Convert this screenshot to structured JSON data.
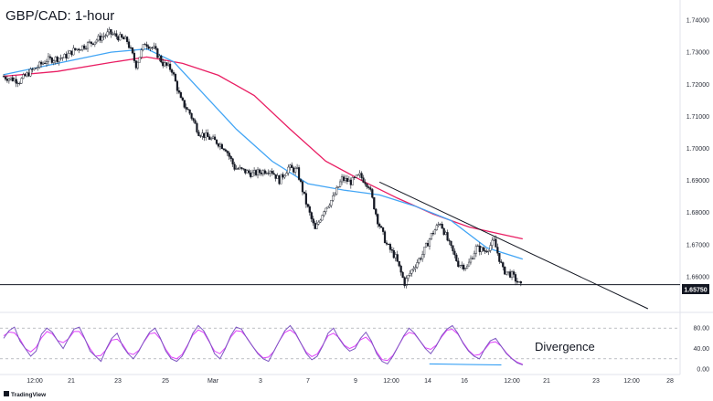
{
  "chart_data": {
    "type": "candlestick",
    "title": "GBP/CAD: 1-hour",
    "price_axis": {
      "ticks": [
        "1.74000",
        "1.73000",
        "1.72000",
        "1.71000",
        "1.70000",
        "1.69000",
        "1.68000",
        "1.67000",
        "1.66000"
      ],
      "range": [
        1.65,
        1.744
      ]
    },
    "support_level": {
      "price": 1.6575,
      "label": "1.65750"
    },
    "x_ticks": [
      "12:00",
      "21",
      "23",
      "25",
      "Mar",
      "3",
      "7",
      "9",
      "12:00",
      "14",
      "16",
      "12:00",
      "21",
      "23",
      "12:00",
      "28"
    ],
    "price_path": [
      [
        0,
        1.7225
      ],
      [
        2,
        1.721
      ],
      [
        3,
        1.7235
      ],
      [
        5,
        1.7275
      ],
      [
        7,
        1.7285
      ],
      [
        8,
        1.7305
      ],
      [
        10,
        1.733
      ],
      [
        12,
        1.736
      ],
      [
        14,
        1.7335
      ],
      [
        15,
        1.726
      ],
      [
        16,
        1.733
      ],
      [
        17,
        1.731
      ],
      [
        18,
        1.7265
      ],
      [
        19,
        1.7245
      ],
      [
        20,
        1.715
      ],
      [
        21,
        1.711
      ],
      [
        22,
        1.705
      ],
      [
        24,
        1.702
      ],
      [
        25,
        1.7
      ],
      [
        26,
        1.694
      ],
      [
        28,
        1.692
      ],
      [
        30,
        1.6935
      ],
      [
        31,
        1.69
      ],
      [
        32,
        1.694
      ],
      [
        33,
        1.693
      ],
      [
        34,
        1.683
      ],
      [
        35,
        1.6745
      ],
      [
        36,
        1.681
      ],
      [
        37,
        1.6845
      ],
      [
        38,
        1.6905
      ],
      [
        39,
        1.6895
      ],
      [
        40,
        1.6915
      ],
      [
        41,
        1.6885
      ],
      [
        42,
        1.6775
      ],
      [
        43,
        1.67
      ],
      [
        44,
        1.666
      ],
      [
        45,
        1.658
      ],
      [
        46,
        1.663
      ],
      [
        47,
        1.667
      ],
      [
        48,
        1.673
      ],
      [
        49,
        1.677
      ],
      [
        50,
        1.67
      ],
      [
        51,
        1.664
      ],
      [
        52,
        1.663
      ],
      [
        53,
        1.669
      ],
      [
        54,
        1.668
      ],
      [
        55,
        1.671
      ],
      [
        56,
        1.662
      ],
      [
        57,
        1.6605
      ],
      [
        58,
        1.657
      ]
    ],
    "moving_averages": [
      {
        "name": "",
        "color": "#e91e63",
        "points": [
          [
            0,
            1.7225
          ],
          [
            6,
            1.724
          ],
          [
            12,
            1.7268
          ],
          [
            16,
            1.7285
          ],
          [
            20,
            1.7265
          ],
          [
            24,
            1.7228
          ],
          [
            28,
            1.7165
          ],
          [
            32,
            1.706
          ],
          [
            36,
            1.696
          ],
          [
            40,
            1.69
          ],
          [
            44,
            1.6845
          ],
          [
            48,
            1.6795
          ],
          [
            52,
            1.6755
          ],
          [
            56,
            1.673
          ],
          [
            58,
            1.6718
          ]
        ]
      },
      {
        "name": "",
        "color": "#42a5f5",
        "points": [
          [
            0,
            1.723
          ],
          [
            6,
            1.7265
          ],
          [
            12,
            1.73
          ],
          [
            16,
            1.731
          ],
          [
            19,
            1.727
          ],
          [
            22,
            1.718
          ],
          [
            26,
            1.706
          ],
          [
            30,
            1.696
          ],
          [
            34,
            1.689
          ],
          [
            38,
            1.687
          ],
          [
            42,
            1.6855
          ],
          [
            46,
            1.682
          ],
          [
            50,
            1.6775
          ],
          [
            54,
            1.669
          ],
          [
            58,
            1.6655
          ]
        ]
      }
    ],
    "trendline": [
      [
        42,
        1.6895
      ],
      [
        72,
        1.65
      ]
    ],
    "oscillator": {
      "ticks": [
        "80.00",
        "40.00",
        "0.00"
      ],
      "range": [
        0,
        100
      ],
      "levels": [
        80,
        20
      ],
      "line": [
        60,
        75,
        82,
        55,
        40,
        25,
        35,
        68,
        80,
        72,
        55,
        40,
        60,
        78,
        82,
        60,
        35,
        25,
        15,
        40,
        60,
        70,
        45,
        30,
        20,
        35,
        55,
        72,
        80,
        60,
        35,
        20,
        15,
        25,
        45,
        70,
        85,
        75,
        55,
        30,
        20,
        40,
        65,
        82,
        78,
        60,
        45,
        30,
        20,
        15,
        35,
        55,
        75,
        85,
        70,
        50,
        30,
        18,
        25,
        45,
        70,
        80,
        60,
        45,
        35,
        40,
        60,
        72,
        55,
        30,
        15,
        10,
        25,
        45,
        65,
        80,
        70,
        55,
        40,
        30,
        45,
        65,
        78,
        85,
        70,
        50,
        35,
        25,
        20,
        40,
        55,
        60,
        45,
        30,
        20,
        12,
        8
      ],
      "signal_color": "#e040fb",
      "line_color": "#7e57c2",
      "divergence_line": [
        [
          44,
          10
        ],
        [
          50,
          8
        ]
      ],
      "annotation": "Divergence"
    }
  },
  "branding": {
    "logo": "TradingView"
  }
}
